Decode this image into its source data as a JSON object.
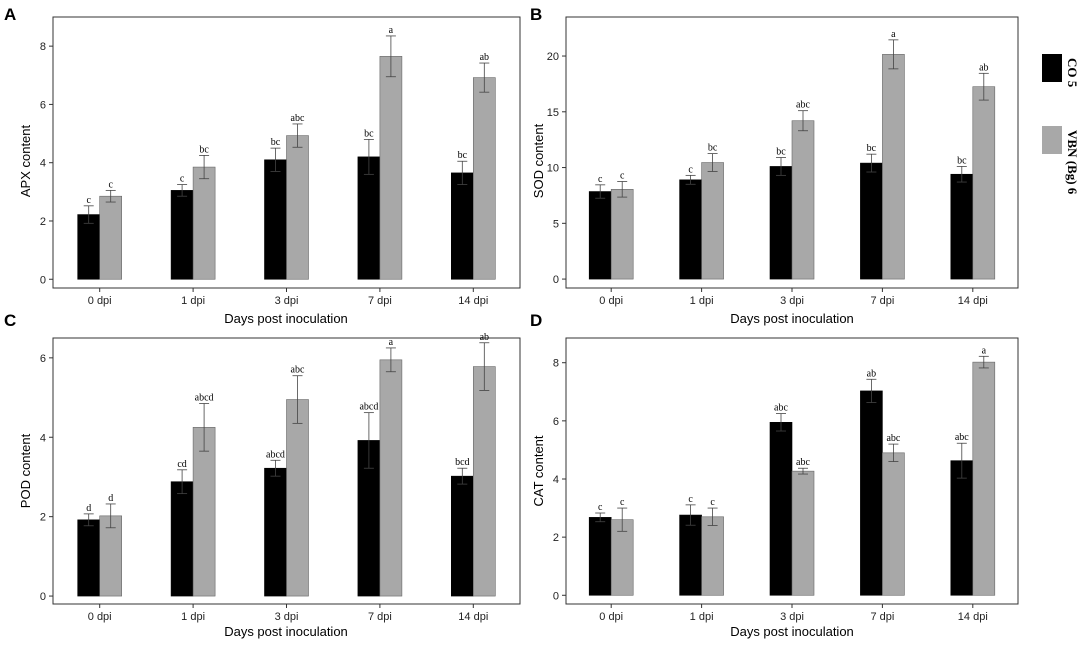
{
  "legend": {
    "entries": [
      {
        "label": "CO 5",
        "color": "#000000"
      },
      {
        "label": "VBN (Bg) 6",
        "color": "#a8a8a8"
      }
    ]
  },
  "chart_data": [
    {
      "type": "bar",
      "panel": "A",
      "ylabel": "APX content",
      "xlabel": "Days post inoculation",
      "categories": [
        "0 dpi",
        "1 dpi",
        "3 dpi",
        "7 dpi",
        "14 dpi"
      ],
      "ylim": [
        -0.3,
        9.0
      ],
      "yticks": [
        0,
        2,
        4,
        6,
        8
      ],
      "series": [
        {
          "name": "CO 5",
          "color": "#000000",
          "values": [
            2.22,
            3.05,
            4.1,
            4.2,
            3.65
          ],
          "errors": [
            0.3,
            0.2,
            0.4,
            0.6,
            0.4
          ],
          "labels": [
            "c",
            "c",
            "bc",
            "bc",
            "bc"
          ]
        },
        {
          "name": "VBN (Bg) 6",
          "color": "#a8a8a8",
          "values": [
            2.85,
            3.85,
            4.93,
            7.65,
            6.92
          ],
          "errors": [
            0.2,
            0.4,
            0.4,
            0.7,
            0.5
          ],
          "labels": [
            "c",
            "bc",
            "abc",
            "a",
            "ab"
          ]
        }
      ]
    },
    {
      "type": "bar",
      "panel": "B",
      "ylabel": "SOD content",
      "xlabel": "Days post inoculation",
      "categories": [
        "0 dpi",
        "1 dpi",
        "3 dpi",
        "7 dpi",
        "14 dpi"
      ],
      "ylim": [
        -0.8,
        23.5
      ],
      "yticks": [
        0,
        5,
        10,
        15,
        20
      ],
      "series": [
        {
          "name": "CO 5",
          "color": "#000000",
          "values": [
            7.85,
            8.9,
            10.1,
            10.4,
            9.4
          ],
          "errors": [
            0.6,
            0.4,
            0.8,
            0.8,
            0.7
          ],
          "labels": [
            "c",
            "c",
            "bc",
            "bc",
            "bc"
          ]
        },
        {
          "name": "VBN (Bg) 6",
          "color": "#a8a8a8",
          "values": [
            8.05,
            10.45,
            14.2,
            20.15,
            17.25
          ],
          "errors": [
            0.7,
            0.8,
            0.9,
            1.3,
            1.2
          ],
          "labels": [
            "c",
            "bc",
            "abc",
            "a",
            "ab"
          ]
        }
      ]
    },
    {
      "type": "bar",
      "panel": "C",
      "ylabel": "POD content",
      "xlabel": "Days post inoculation",
      "categories": [
        "0 dpi",
        "1 dpi",
        "3 dpi",
        "7 dpi",
        "14 dpi"
      ],
      "ylim": [
        -0.2,
        6.5
      ],
      "yticks": [
        0,
        2,
        4,
        6
      ],
      "series": [
        {
          "name": "CO 5",
          "color": "#000000",
          "values": [
            1.92,
            2.88,
            3.22,
            3.92,
            3.02
          ],
          "errors": [
            0.15,
            0.3,
            0.2,
            0.7,
            0.2
          ],
          "labels": [
            "d",
            "cd",
            "abcd",
            "abcd",
            "bcd"
          ]
        },
        {
          "name": "VBN (Bg) 6",
          "color": "#a8a8a8",
          "values": [
            2.02,
            4.25,
            4.95,
            5.95,
            5.78
          ],
          "errors": [
            0.3,
            0.6,
            0.6,
            0.3,
            0.6
          ],
          "labels": [
            "d",
            "abcd",
            "abc",
            "a",
            "ab"
          ]
        }
      ]
    },
    {
      "type": "bar",
      "panel": "D",
      "ylabel": "CAT content",
      "xlabel": "Days post inoculation",
      "categories": [
        "0 dpi",
        "1 dpi",
        "3 dpi",
        "7 dpi",
        "14 dpi"
      ],
      "ylim": [
        -0.3,
        8.85
      ],
      "yticks": [
        0,
        2,
        4,
        6,
        8
      ],
      "series": [
        {
          "name": "CO 5",
          "color": "#000000",
          "values": [
            2.68,
            2.76,
            5.95,
            7.03,
            4.63
          ],
          "errors": [
            0.15,
            0.35,
            0.3,
            0.4,
            0.6
          ],
          "labels": [
            "c",
            "c",
            "abc",
            "ab",
            "abc"
          ]
        },
        {
          "name": "VBN (Bg) 6",
          "color": "#a8a8a8",
          "values": [
            2.6,
            2.7,
            4.27,
            4.9,
            8.02
          ],
          "errors": [
            0.4,
            0.3,
            0.1,
            0.3,
            0.2
          ],
          "labels": [
            "c",
            "c",
            "abc",
            "abc",
            "a"
          ]
        }
      ]
    }
  ]
}
